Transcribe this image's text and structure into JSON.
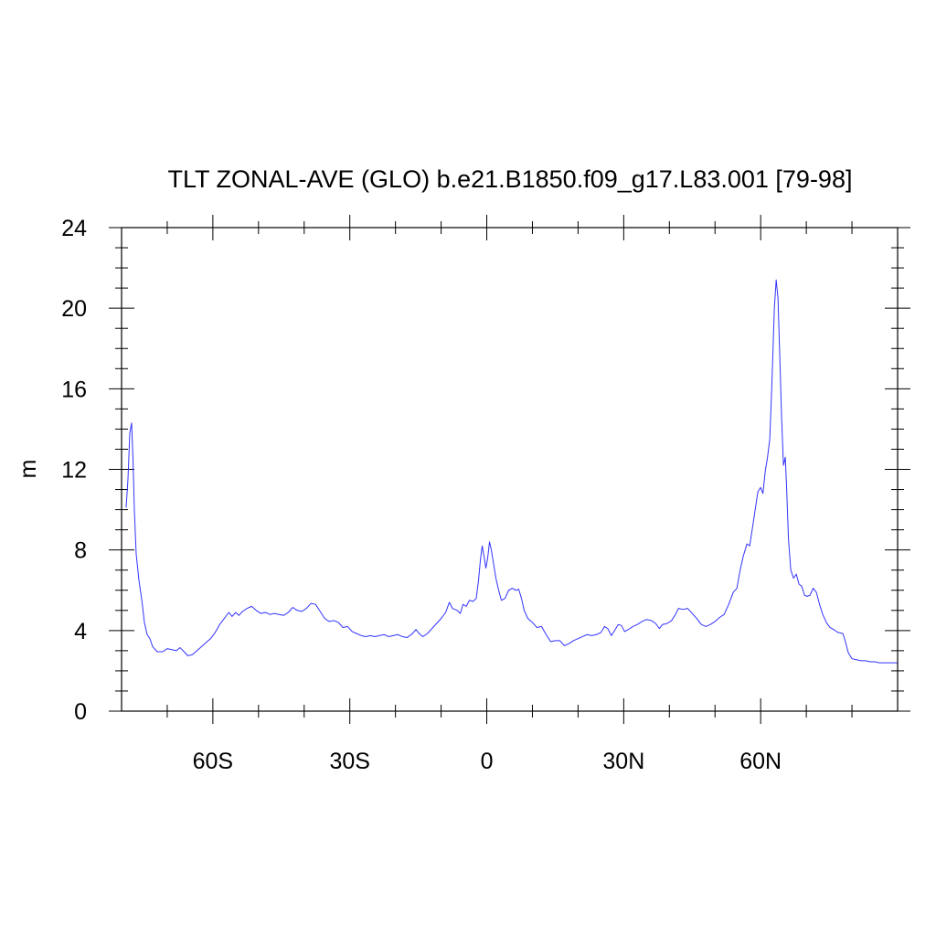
{
  "chart_data": {
    "type": "line",
    "title": "TLT ZONAL-AVE (GLO) b.e21.B1850.f09_g17.L83.001 [79-98]",
    "xlabel": "",
    "ylabel": "m",
    "xlim": [
      -80,
      90
    ],
    "ylim": [
      0,
      24
    ],
    "x_ticks": [
      {
        "value": -60,
        "label": "60S"
      },
      {
        "value": -30,
        "label": "30S"
      },
      {
        "value": 0,
        "label": "0"
      },
      {
        "value": 30,
        "label": "30N"
      },
      {
        "value": 60,
        "label": "60N"
      }
    ],
    "x_minor_step": 10,
    "y_ticks": [
      {
        "value": 0,
        "label": "0"
      },
      {
        "value": 4,
        "label": "4"
      },
      {
        "value": 8,
        "label": "8"
      },
      {
        "value": 12,
        "label": "12"
      },
      {
        "value": 16,
        "label": "16"
      },
      {
        "value": 20,
        "label": "20"
      },
      {
        "value": 24,
        "label": "24"
      }
    ],
    "y_minor_step": 1,
    "grid": false,
    "series": [
      {
        "color": "#3333ff",
        "points": [
          [
            -79,
            10.1
          ],
          [
            -78.6,
            11.5
          ],
          [
            -78.2,
            13.8
          ],
          [
            -77.8,
            14.3
          ],
          [
            -77.5,
            12.5
          ],
          [
            -77.2,
            10.0
          ],
          [
            -76.8,
            7.8
          ],
          [
            -76.2,
            6.5
          ],
          [
            -75.5,
            5.4
          ],
          [
            -75,
            4.4
          ],
          [
            -74.4,
            3.8
          ],
          [
            -73.8,
            3.6
          ],
          [
            -73.2,
            3.2
          ],
          [
            -72.2,
            2.95
          ],
          [
            -71,
            2.95
          ],
          [
            -70,
            3.1
          ],
          [
            -69,
            3.05
          ],
          [
            -68,
            3.0
          ],
          [
            -67.2,
            3.15
          ],
          [
            -66.3,
            2.95
          ],
          [
            -65.5,
            2.75
          ],
          [
            -64.5,
            2.8
          ],
          [
            -63.5,
            3.0
          ],
          [
            -62.5,
            3.2
          ],
          [
            -61.5,
            3.4
          ],
          [
            -60.5,
            3.6
          ],
          [
            -59.5,
            3.9
          ],
          [
            -58.5,
            4.3
          ],
          [
            -57.5,
            4.6
          ],
          [
            -56.5,
            4.9
          ],
          [
            -55.8,
            4.7
          ],
          [
            -55,
            4.9
          ],
          [
            -54.3,
            4.75
          ],
          [
            -53.5,
            4.95
          ],
          [
            -52.5,
            5.1
          ],
          [
            -51.5,
            5.2
          ],
          [
            -50.5,
            5.0
          ],
          [
            -49.5,
            4.85
          ],
          [
            -48.5,
            4.9
          ],
          [
            -47.5,
            4.8
          ],
          [
            -46.5,
            4.85
          ],
          [
            -45.5,
            4.8
          ],
          [
            -44.5,
            4.75
          ],
          [
            -43.5,
            4.9
          ],
          [
            -42.5,
            5.15
          ],
          [
            -41.5,
            5.0
          ],
          [
            -40.5,
            4.95
          ],
          [
            -39.5,
            5.1
          ],
          [
            -38.5,
            5.35
          ],
          [
            -37.5,
            5.3
          ],
          [
            -36.5,
            4.95
          ],
          [
            -35.5,
            4.6
          ],
          [
            -34.5,
            4.45
          ],
          [
            -33.5,
            4.5
          ],
          [
            -32.5,
            4.4
          ],
          [
            -31.5,
            4.15
          ],
          [
            -30.5,
            4.2
          ],
          [
            -29.5,
            3.95
          ],
          [
            -28.5,
            3.85
          ],
          [
            -27.5,
            3.75
          ],
          [
            -26.5,
            3.7
          ],
          [
            -25.5,
            3.75
          ],
          [
            -24.5,
            3.7
          ],
          [
            -23.5,
            3.75
          ],
          [
            -22.5,
            3.8
          ],
          [
            -21.5,
            3.7
          ],
          [
            -20.5,
            3.75
          ],
          [
            -19.5,
            3.8
          ],
          [
            -18.5,
            3.7
          ],
          [
            -17.5,
            3.65
          ],
          [
            -16.5,
            3.8
          ],
          [
            -15.5,
            4.05
          ],
          [
            -14.8,
            3.85
          ],
          [
            -14,
            3.7
          ],
          [
            -13,
            3.85
          ],
          [
            -12,
            4.1
          ],
          [
            -11,
            4.35
          ],
          [
            -10,
            4.6
          ],
          [
            -9,
            4.9
          ],
          [
            -8.2,
            5.4
          ],
          [
            -7.5,
            5.1
          ],
          [
            -6.5,
            5.0
          ],
          [
            -5.8,
            4.85
          ],
          [
            -5.2,
            5.3
          ],
          [
            -4.5,
            5.2
          ],
          [
            -3.8,
            5.5
          ],
          [
            -3,
            5.45
          ],
          [
            -2.3,
            5.6
          ],
          [
            -1.8,
            6.5
          ],
          [
            -1.4,
            7.5
          ],
          [
            -1,
            8.2
          ],
          [
            -0.6,
            7.7
          ],
          [
            -0.2,
            7.1
          ],
          [
            0.2,
            7.6
          ],
          [
            0.6,
            8.4
          ],
          [
            1,
            8.0
          ],
          [
            1.5,
            7.3
          ],
          [
            2,
            6.6
          ],
          [
            2.6,
            6.0
          ],
          [
            3.2,
            5.5
          ],
          [
            4,
            5.6
          ],
          [
            4.8,
            6.0
          ],
          [
            5.6,
            6.1
          ],
          [
            6.4,
            6.0
          ],
          [
            7,
            6.05
          ],
          [
            7.6,
            5.6
          ],
          [
            8.2,
            5.0
          ],
          [
            9,
            4.6
          ],
          [
            10,
            4.4
          ],
          [
            11,
            4.15
          ],
          [
            12,
            4.2
          ],
          [
            13,
            3.8
          ],
          [
            14,
            3.45
          ],
          [
            15,
            3.5
          ],
          [
            16,
            3.5
          ],
          [
            17,
            3.25
          ],
          [
            18,
            3.35
          ],
          [
            19,
            3.5
          ],
          [
            20,
            3.6
          ],
          [
            21,
            3.7
          ],
          [
            22,
            3.8
          ],
          [
            23,
            3.75
          ],
          [
            24,
            3.8
          ],
          [
            25,
            3.9
          ],
          [
            25.8,
            4.2
          ],
          [
            26.5,
            4.1
          ],
          [
            27.3,
            3.75
          ],
          [
            28,
            4.0
          ],
          [
            28.8,
            4.3
          ],
          [
            29.5,
            4.25
          ],
          [
            30.2,
            3.95
          ],
          [
            31,
            4.05
          ],
          [
            32,
            4.2
          ],
          [
            33,
            4.3
          ],
          [
            34,
            4.45
          ],
          [
            35,
            4.55
          ],
          [
            36,
            4.5
          ],
          [
            37,
            4.35
          ],
          [
            37.8,
            4.1
          ],
          [
            38.5,
            4.3
          ],
          [
            39.5,
            4.35
          ],
          [
            40.5,
            4.5
          ],
          [
            41.2,
            4.75
          ],
          [
            42,
            5.1
          ],
          [
            43,
            5.05
          ],
          [
            44,
            5.1
          ],
          [
            45,
            4.85
          ],
          [
            46,
            4.6
          ],
          [
            47,
            4.3
          ],
          [
            48,
            4.2
          ],
          [
            49,
            4.3
          ],
          [
            50,
            4.45
          ],
          [
            51,
            4.65
          ],
          [
            52,
            4.8
          ],
          [
            53,
            5.3
          ],
          [
            54,
            5.9
          ],
          [
            54.8,
            6.1
          ],
          [
            55.5,
            7.0
          ],
          [
            56.2,
            7.7
          ],
          [
            57,
            8.3
          ],
          [
            57.6,
            8.2
          ],
          [
            58.2,
            9.1
          ],
          [
            58.8,
            10.0
          ],
          [
            59.4,
            10.9
          ],
          [
            60,
            11.1
          ],
          [
            60.5,
            10.8
          ],
          [
            61,
            11.9
          ],
          [
            61.5,
            12.6
          ],
          [
            62,
            13.5
          ],
          [
            62.5,
            16.5
          ],
          [
            63,
            20.0
          ],
          [
            63.4,
            21.4
          ],
          [
            63.8,
            20.5
          ],
          [
            64.2,
            17.5
          ],
          [
            64.6,
            14.5
          ],
          [
            65,
            12.2
          ],
          [
            65.4,
            12.6
          ],
          [
            65.7,
            11.0
          ],
          [
            66.1,
            8.5
          ],
          [
            66.6,
            7.0
          ],
          [
            67.2,
            6.6
          ],
          [
            67.8,
            6.8
          ],
          [
            68.4,
            6.3
          ],
          [
            69,
            6.2
          ],
          [
            69.6,
            5.75
          ],
          [
            70.2,
            5.7
          ],
          [
            70.8,
            5.75
          ],
          [
            71.5,
            6.1
          ],
          [
            72.2,
            5.9
          ],
          [
            72.9,
            5.3
          ],
          [
            73.6,
            4.8
          ],
          [
            74.4,
            4.4
          ],
          [
            75.2,
            4.15
          ],
          [
            76,
            4.05
          ],
          [
            77,
            3.9
          ],
          [
            78,
            3.85
          ],
          [
            78.5,
            3.5
          ],
          [
            79.2,
            2.9
          ],
          [
            80,
            2.6
          ],
          [
            81,
            2.55
          ],
          [
            82,
            2.5
          ],
          [
            83,
            2.5
          ],
          [
            84,
            2.45
          ],
          [
            85,
            2.45
          ],
          [
            86,
            2.4
          ],
          [
            87,
            2.4
          ],
          [
            88,
            2.4
          ],
          [
            89,
            2.4
          ],
          [
            90,
            2.4
          ]
        ]
      }
    ]
  }
}
